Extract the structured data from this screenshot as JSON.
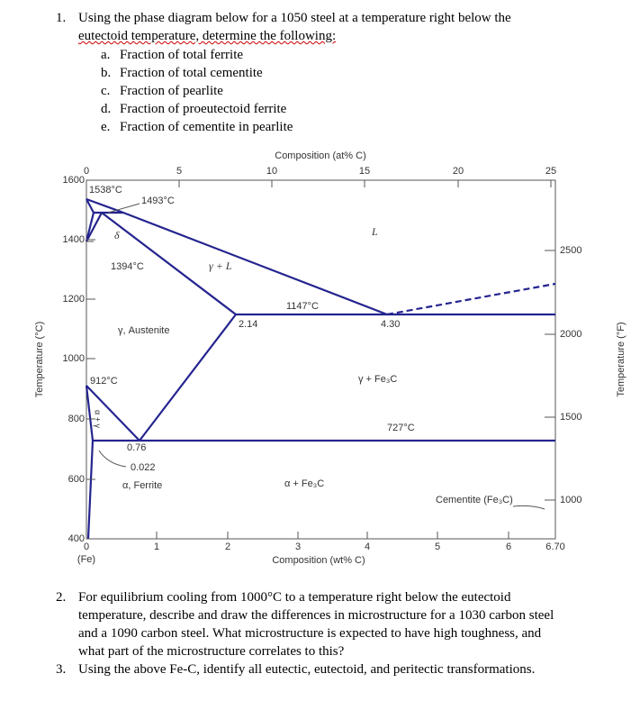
{
  "questions": [
    {
      "number": "1.",
      "lines": [
        "Using the phase diagram below for a 1050 steel at a temperature right below the",
        "eutectoid temperature, determine the following:"
      ],
      "items": [
        {
          "label": "a.",
          "text": "Fraction of total ferrite"
        },
        {
          "label": "b.",
          "text": "Fraction of total cementite"
        },
        {
          "label": "c.",
          "text": "Fraction of pearlite"
        },
        {
          "label": "d.",
          "text": "Fraction of proeutectoid ferrite"
        },
        {
          "label": "e.",
          "text": "Fraction of cementite in pearlite"
        }
      ]
    },
    {
      "number": "2.",
      "lines": [
        "For equilibrium cooling from 1000°C to a temperature right below the eutectoid",
        "temperature, describe and draw the differences in microstructure for a 1030 carbon steel",
        "and a 1090 carbon steel. What microstructure is expected to have high toughness, and",
        "what part of the microstructure correlates to this?"
      ]
    },
    {
      "number": "3.",
      "lines": [
        "Using the above Fe-C, identify all eutectic, eutectoid, and peritectic transformations."
      ]
    }
  ],
  "diagram": {
    "top_axis": {
      "label": "Composition (at% C)",
      "ticks": [
        0,
        5,
        10,
        15,
        20,
        25
      ]
    },
    "bottom_axis": {
      "label": "Composition (wt% C)",
      "ticks": [
        0,
        1,
        2,
        3,
        4,
        5,
        6,
        "6.70"
      ],
      "origin_note": "(Fe)"
    },
    "left_axis": {
      "label": "Temperature (°C)",
      "ticks": [
        1600,
        1400,
        1200,
        1000,
        800,
        600,
        400
      ]
    },
    "right_axis": {
      "label": "Temperature (°F)",
      "ticks": [
        2500,
        2000,
        1500,
        1000
      ]
    },
    "labels": [
      "1538°C",
      "1493°C",
      "δ",
      "L",
      "1394°C",
      "γ + L",
      "1147°C",
      "2.14",
      "4.30",
      "γ, Austenite",
      "912°C",
      "γ + Fe₃C",
      "727°C",
      "0.76",
      "0.022",
      "α, Ferrite",
      "α + Fe₃C",
      "Cementite (Fe₃C)",
      "α + γ"
    ]
  }
}
